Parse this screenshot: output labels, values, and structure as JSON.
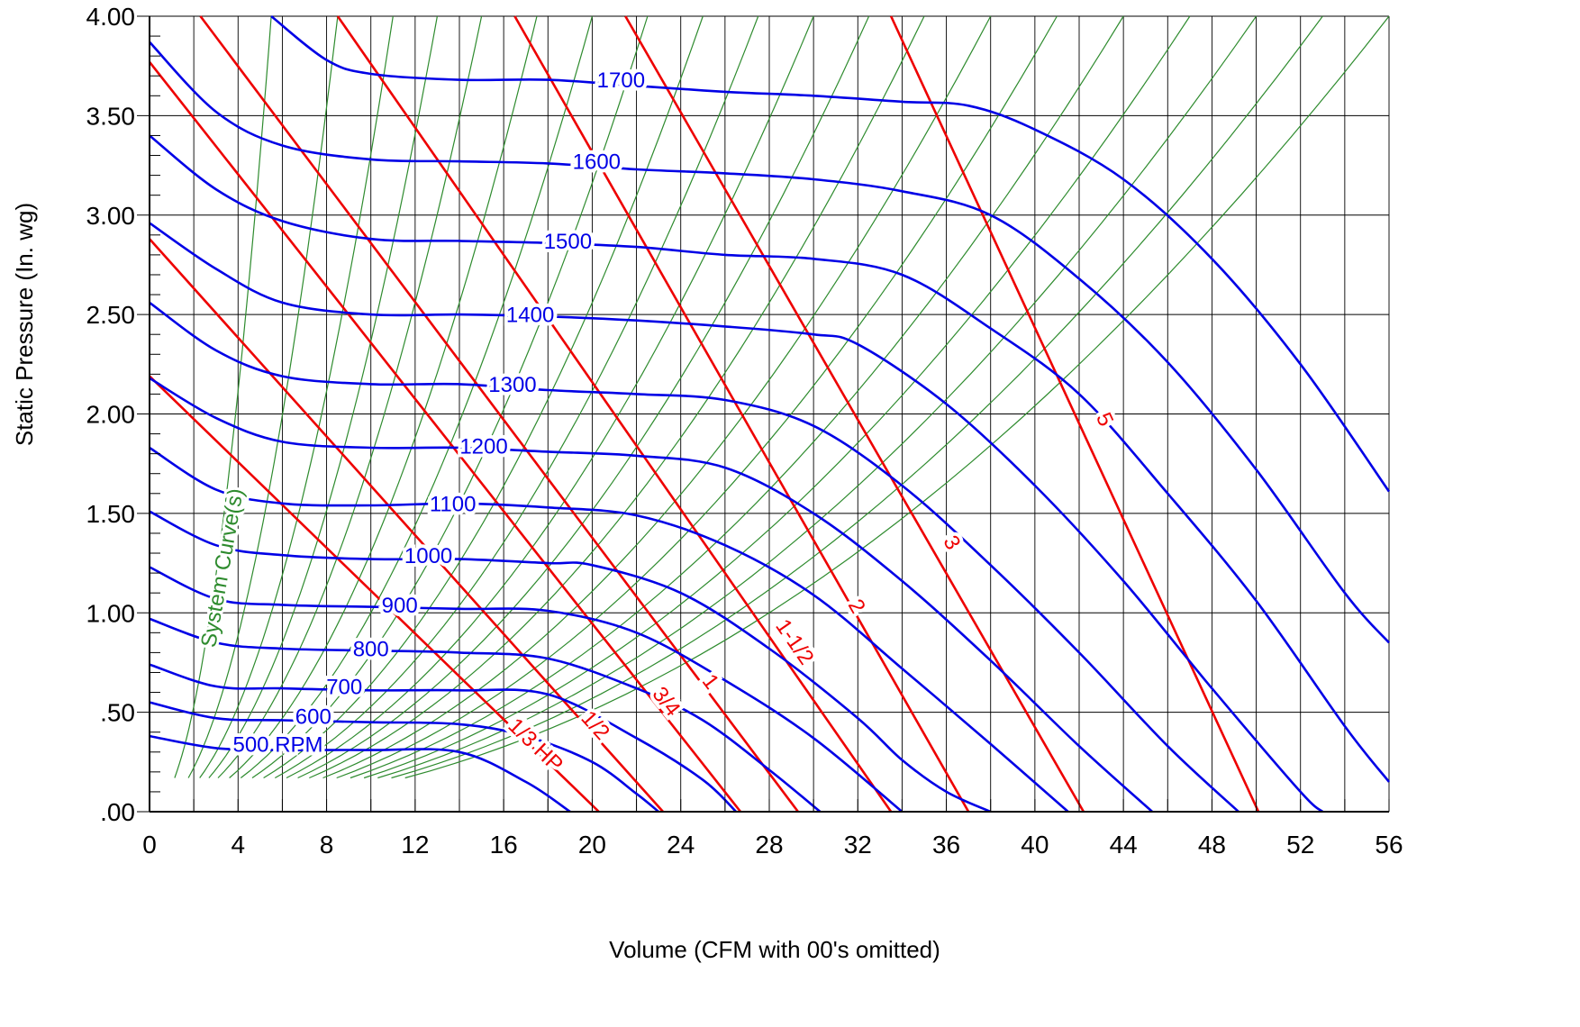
{
  "chart_data": {
    "type": "line",
    "title": "",
    "xlabel": "Volume (CFM with 00's omitted)",
    "ylabel": "Static Pressure (In. wg)",
    "xlim": [
      0,
      56
    ],
    "ylim": [
      0,
      4
    ],
    "grid": true,
    "x_ticks": [
      "0",
      "4",
      "8",
      "12",
      "16",
      "20",
      "24",
      "28",
      "32",
      "36",
      "40",
      "44",
      "48",
      "52",
      "56"
    ],
    "y_ticks": [
      ".00",
      ".50",
      "1.00",
      "1.50",
      "2.00",
      "2.50",
      "3.00",
      "3.50",
      "4.00"
    ],
    "colors": {
      "rpm": "#0000e6",
      "hp": "#ee0000",
      "system": "#2e8b2e",
      "grid": "#000000"
    },
    "rpm_curves": [
      {
        "label": "500 RPM",
        "points": [
          [
            0,
            0.38
          ],
          [
            3,
            0.32
          ],
          [
            6,
            0.31
          ],
          [
            10,
            0.31
          ],
          [
            14,
            0.3
          ],
          [
            17,
            0.15
          ],
          [
            19,
            0
          ]
        ]
      },
      {
        "label": "600",
        "points": [
          [
            0,
            0.55
          ],
          [
            3,
            0.47
          ],
          [
            6,
            0.46
          ],
          [
            10,
            0.45
          ],
          [
            14,
            0.44
          ],
          [
            17,
            0.38
          ],
          [
            20,
            0.25
          ],
          [
            22,
            0.09
          ],
          [
            23,
            0
          ]
        ]
      },
      {
        "label": "700",
        "points": [
          [
            0,
            0.74
          ],
          [
            3,
            0.63
          ],
          [
            6,
            0.62
          ],
          [
            10,
            0.61
          ],
          [
            14,
            0.61
          ],
          [
            18,
            0.59
          ],
          [
            22,
            0.37
          ],
          [
            25,
            0.16
          ],
          [
            26.5,
            0
          ]
        ]
      },
      {
        "label": "800",
        "points": [
          [
            0,
            0.97
          ],
          [
            3,
            0.85
          ],
          [
            6,
            0.82
          ],
          [
            10,
            0.81
          ],
          [
            14,
            0.8
          ],
          [
            18,
            0.77
          ],
          [
            22,
            0.62
          ],
          [
            25,
            0.46
          ],
          [
            28,
            0.21
          ],
          [
            30.3,
            0
          ]
        ]
      },
      {
        "label": "900",
        "points": [
          [
            0,
            1.23
          ],
          [
            3,
            1.07
          ],
          [
            6,
            1.04
          ],
          [
            10,
            1.03
          ],
          [
            14,
            1.02
          ],
          [
            18,
            1.01
          ],
          [
            22,
            0.9
          ],
          [
            26,
            0.66
          ],
          [
            30,
            0.37
          ],
          [
            34,
            0
          ]
        ]
      },
      {
        "label": "1000",
        "points": [
          [
            0,
            1.51
          ],
          [
            3,
            1.34
          ],
          [
            6,
            1.29
          ],
          [
            10,
            1.27
          ],
          [
            14,
            1.27
          ],
          [
            18,
            1.25
          ],
          [
            20,
            1.24
          ],
          [
            24,
            1.1
          ],
          [
            28,
            0.82
          ],
          [
            32,
            0.47
          ],
          [
            34,
            0.26
          ],
          [
            36,
            0.1
          ],
          [
            38,
            0
          ]
        ]
      },
      {
        "label": "1100",
        "points": [
          [
            0,
            1.83
          ],
          [
            3,
            1.62
          ],
          [
            6,
            1.55
          ],
          [
            10,
            1.54
          ],
          [
            14,
            1.55
          ],
          [
            18,
            1.53
          ],
          [
            22,
            1.49
          ],
          [
            26,
            1.34
          ],
          [
            30,
            1.09
          ],
          [
            34,
            0.72
          ],
          [
            38,
            0.34
          ],
          [
            41.5,
            0
          ]
        ]
      },
      {
        "label": "1200",
        "points": [
          [
            0,
            2.18
          ],
          [
            3,
            1.98
          ],
          [
            6,
            1.86
          ],
          [
            10,
            1.83
          ],
          [
            14,
            1.83
          ],
          [
            18,
            1.81
          ],
          [
            22,
            1.79
          ],
          [
            26,
            1.73
          ],
          [
            30,
            1.5
          ],
          [
            34,
            1.16
          ],
          [
            38,
            0.76
          ],
          [
            42,
            0.33
          ],
          [
            45.3,
            0
          ]
        ]
      },
      {
        "label": "1300",
        "points": [
          [
            0,
            2.56
          ],
          [
            3,
            2.32
          ],
          [
            6,
            2.19
          ],
          [
            10,
            2.15
          ],
          [
            14,
            2.15
          ],
          [
            18,
            2.12
          ],
          [
            22,
            2.1
          ],
          [
            26,
            2.07
          ],
          [
            30,
            1.94
          ],
          [
            34,
            1.64
          ],
          [
            38,
            1.24
          ],
          [
            42,
            0.8
          ],
          [
            46,
            0.33
          ],
          [
            49.2,
            0
          ]
        ]
      },
      {
        "label": "1400",
        "points": [
          [
            0,
            2.96
          ],
          [
            3,
            2.73
          ],
          [
            6,
            2.56
          ],
          [
            10,
            2.5
          ],
          [
            14,
            2.5
          ],
          [
            18,
            2.49
          ],
          [
            22,
            2.47
          ],
          [
            26,
            2.44
          ],
          [
            30,
            2.4
          ],
          [
            32,
            2.35
          ],
          [
            36,
            2.05
          ],
          [
            40,
            1.64
          ],
          [
            44,
            1.16
          ],
          [
            48,
            0.62
          ],
          [
            52,
            0.1
          ],
          [
            53,
            0
          ]
        ]
      },
      {
        "label": "1500",
        "points": [
          [
            0,
            3.4
          ],
          [
            3,
            3.13
          ],
          [
            6,
            2.97
          ],
          [
            10,
            2.88
          ],
          [
            14,
            2.87
          ],
          [
            18,
            2.86
          ],
          [
            22,
            2.84
          ],
          [
            26,
            2.8
          ],
          [
            30,
            2.78
          ],
          [
            34,
            2.7
          ],
          [
            38,
            2.43
          ],
          [
            42,
            2.1
          ],
          [
            46,
            1.6
          ],
          [
            50,
            1.06
          ],
          [
            54,
            0.43
          ],
          [
            56,
            0.15
          ]
        ]
      },
      {
        "label": "1600",
        "points": [
          [
            0,
            3.87
          ],
          [
            3,
            3.52
          ],
          [
            6,
            3.35
          ],
          [
            10,
            3.28
          ],
          [
            14,
            3.27
          ],
          [
            18,
            3.26
          ],
          [
            22,
            3.23
          ],
          [
            26,
            3.21
          ],
          [
            30,
            3.18
          ],
          [
            34,
            3.12
          ],
          [
            38,
            3.0
          ],
          [
            42,
            2.68
          ],
          [
            46,
            2.26
          ],
          [
            50,
            1.72
          ],
          [
            54,
            1.1
          ],
          [
            56,
            0.85
          ]
        ]
      },
      {
        "label": "1700",
        "points": [
          [
            5.5,
            4.0
          ],
          [
            8,
            3.78
          ],
          [
            10,
            3.71
          ],
          [
            14,
            3.68
          ],
          [
            18,
            3.68
          ],
          [
            22,
            3.65
          ],
          [
            26,
            3.62
          ],
          [
            30,
            3.6
          ],
          [
            34,
            3.57
          ],
          [
            37,
            3.55
          ],
          [
            40,
            3.43
          ],
          [
            44,
            3.18
          ],
          [
            48,
            2.78
          ],
          [
            52,
            2.25
          ],
          [
            56,
            1.61
          ]
        ]
      }
    ],
    "hp_lines": [
      {
        "label": "1/3 HP",
        "points": [
          [
            0,
            2.19
          ],
          [
            20.3,
            0
          ]
        ]
      },
      {
        "label": "1/2",
        "points": [
          [
            0,
            2.88
          ],
          [
            23.2,
            0
          ]
        ]
      },
      {
        "label": "3/4",
        "points": [
          [
            0,
            3.77
          ],
          [
            26.7,
            0
          ]
        ]
      },
      {
        "label": "1",
        "points": [
          [
            2.3,
            4.0
          ],
          [
            29.3,
            0
          ]
        ]
      },
      {
        "label": "1-1/2",
        "points": [
          [
            8.5,
            4.0
          ],
          [
            33.5,
            0
          ]
        ]
      },
      {
        "label": "2",
        "points": [
          [
            16.5,
            4.0
          ],
          [
            37,
            0
          ]
        ]
      },
      {
        "label": "3",
        "points": [
          [
            21.5,
            4.0
          ],
          [
            42.2,
            0
          ]
        ]
      },
      {
        "label": "5",
        "points": [
          [
            33.5,
            4.0
          ],
          [
            50.1,
            0
          ]
        ]
      }
    ],
    "system_curves_label": "System Curve(s)",
    "system_curves_xend": [
      5.5,
      8.5,
      11,
      13,
      15,
      17.5,
      20,
      22.5,
      25,
      27.5,
      30,
      32.5,
      35,
      38,
      41,
      44,
      47,
      50,
      53,
      56
    ]
  }
}
